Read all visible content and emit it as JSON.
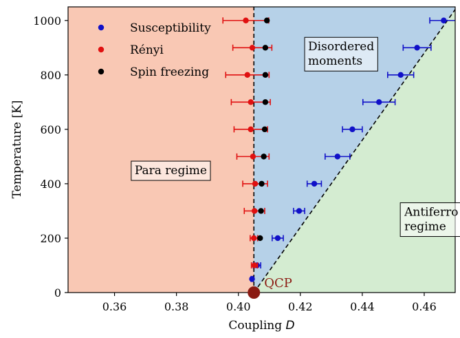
{
  "chart_data": {
    "type": "scatter",
    "xlabel_prefix": "Coupling ",
    "xlabel_var": "D",
    "ylabel": "Temperature [K]",
    "xlim": [
      0.345,
      0.47
    ],
    "ylim": [
      0,
      1050
    ],
    "xticks": [
      0.36,
      0.38,
      0.4,
      0.42,
      0.44,
      0.46
    ],
    "xtick_labels": [
      "0.36",
      "0.38",
      "0.40",
      "0.42",
      "0.44",
      "0.46"
    ],
    "yticks": [
      0,
      200,
      400,
      600,
      800,
      1000
    ],
    "ytick_labels": [
      "0",
      "200",
      "400",
      "600",
      "800",
      "1000"
    ],
    "grid": false,
    "legend_position": "top-left",
    "regions": [
      {
        "name": "Para regime",
        "color": "#f9c8b4",
        "lines": [
          "Para regime"
        ],
        "anchor": [
          0.3665,
          435
        ]
      },
      {
        "name": "Disordered moments",
        "color": "#b6d1e8",
        "lines": [
          "Disordered",
          "moments"
        ],
        "anchor": [
          0.4225,
          890
        ]
      },
      {
        "name": "Antiferro regime",
        "color": "#d4ecd1",
        "lines": [
          "Antiferro",
          "regime"
        ],
        "anchor": [
          0.4536,
          282
        ]
      }
    ],
    "boundaries": [
      {
        "x": [
          0.405,
          0.405
        ],
        "y": [
          0,
          1050
        ]
      },
      {
        "x": [
          0.405,
          0.4706
        ],
        "y": [
          0,
          1050
        ]
      }
    ],
    "qcp": {
      "label": "QCP",
      "x": 0.405,
      "y": 0,
      "color": "#8b1a12"
    },
    "series": [
      {
        "name": "Susceptibility",
        "color": "#1010c8",
        "points": [
          {
            "x": 0.4663,
            "y": 1000,
            "xerr": 0.0045
          },
          {
            "x": 0.4577,
            "y": 900,
            "xerr": 0.0045
          },
          {
            "x": 0.4524,
            "y": 800,
            "xerr": 0.0042
          },
          {
            "x": 0.4454,
            "y": 700,
            "xerr": 0.0052
          },
          {
            "x": 0.4368,
            "y": 600,
            "xerr": 0.0032
          },
          {
            "x": 0.432,
            "y": 500,
            "xerr": 0.004
          },
          {
            "x": 0.4245,
            "y": 400,
            "xerr": 0.0023
          },
          {
            "x": 0.4196,
            "y": 300,
            "xerr": 0.0018
          },
          {
            "x": 0.4127,
            "y": 200,
            "xerr": 0.0018
          },
          {
            "x": 0.406,
            "y": 100,
            "xerr": 0.0012
          },
          {
            "x": 0.4044,
            "y": 50,
            "xerr": 0.0003
          }
        ]
      },
      {
        "name": "Rényi",
        "color": "#e01010",
        "points": [
          {
            "x": 0.4024,
            "y": 1000,
            "xerr": 0.0074
          },
          {
            "x": 0.4045,
            "y": 900,
            "xerr": 0.0063
          },
          {
            "x": 0.4029,
            "y": 800,
            "xerr": 0.007
          },
          {
            "x": 0.404,
            "y": 700,
            "xerr": 0.0063
          },
          {
            "x": 0.404,
            "y": 600,
            "xerr": 0.0054
          },
          {
            "x": 0.4047,
            "y": 500,
            "xerr": 0.0052
          },
          {
            "x": 0.4054,
            "y": 400,
            "xerr": 0.004
          },
          {
            "x": 0.4052,
            "y": 300,
            "xerr": 0.0033
          },
          {
            "x": 0.405,
            "y": 200,
            "xerr": 0.0012
          },
          {
            "x": 0.4052,
            "y": 100,
            "xerr": 0.001
          }
        ]
      },
      {
        "name": "Spin freezing",
        "color": "#000000",
        "points": [
          {
            "x": 0.4092,
            "y": 1000,
            "xerr": 0
          },
          {
            "x": 0.4087,
            "y": 900,
            "xerr": 0
          },
          {
            "x": 0.4087,
            "y": 800,
            "xerr": 0
          },
          {
            "x": 0.4087,
            "y": 700,
            "xerr": 0
          },
          {
            "x": 0.4085,
            "y": 600,
            "xerr": 0
          },
          {
            "x": 0.4082,
            "y": 500,
            "xerr": 0
          },
          {
            "x": 0.4075,
            "y": 400,
            "xerr": 0
          },
          {
            "x": 0.4073,
            "y": 300,
            "xerr": 0
          },
          {
            "x": 0.407,
            "y": 200,
            "xerr": 0
          }
        ]
      }
    ]
  }
}
